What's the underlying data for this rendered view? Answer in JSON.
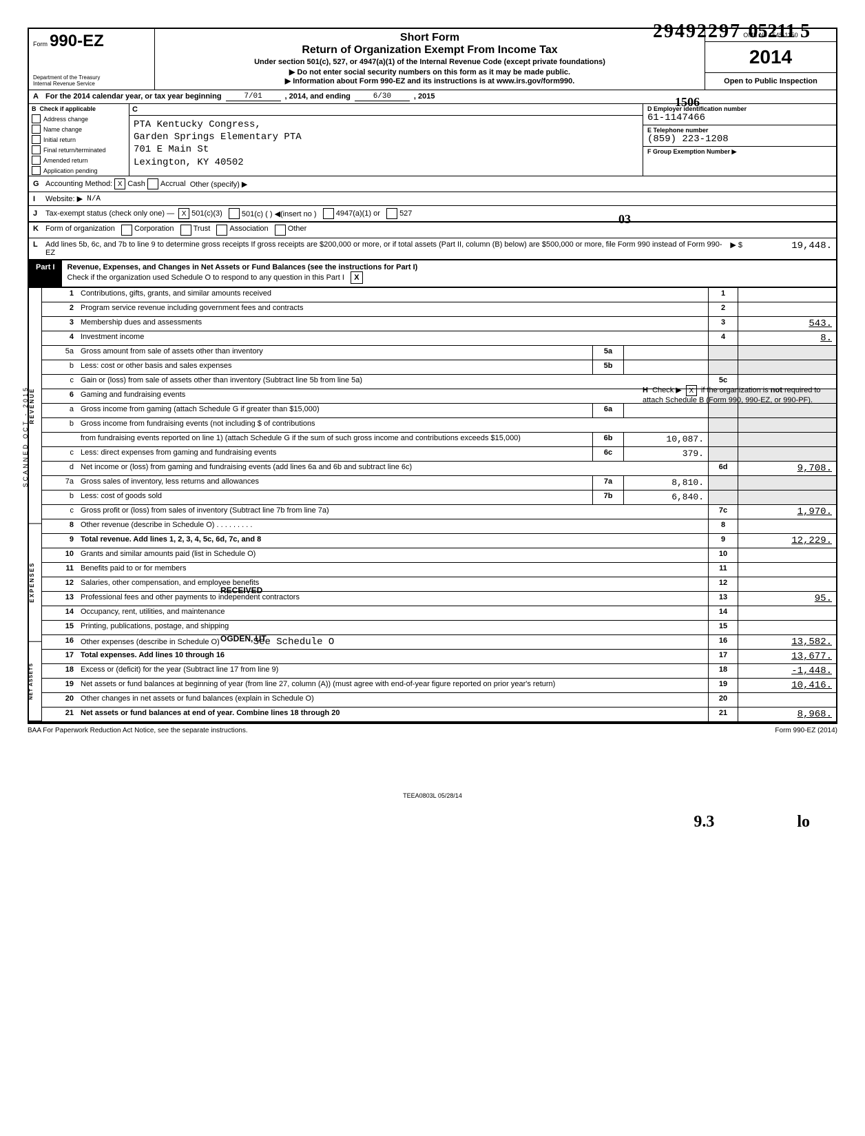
{
  "stamp_top": "29492297",
  "stamp_top2": "05211  5",
  "form_prefix": "Form",
  "form_name": "990-EZ",
  "short_form": "Short Form",
  "main_title": "Return of Organization Exempt From Income Tax",
  "subtitle": "Under section 501(c), 527, or 4947(a)(1) of the Internal Revenue Code (except private foundations)",
  "note1": "▶ Do not enter social security numbers on this form as it may be made public.",
  "note2": "▶ Information about Form 990-EZ and its instructions is at www.irs.gov/form990.",
  "omb": "OMB No 1545-1150",
  "year": "2014",
  "open_pub": "Open to Public Inspection",
  "dept": "Department of the Treasury\nInternal Revenue Service",
  "hw506": "1506",
  "line_a_pre": "For the 2014 calendar year, or tax year beginning",
  "line_a_begin": "7/01",
  "line_a_mid": ", 2014, and ending",
  "line_a_end": "6/30",
  "line_a_yr": ", 2015",
  "b_header": "Check if applicable",
  "b_opts": [
    "Address change",
    "Name change",
    "Initial return",
    "Final return/terminated",
    "Amended return",
    "Application pending"
  ],
  "c_header": "C",
  "c_name1": "PTA Kentucky Congress,",
  "c_name2": "Garden Springs Elementary PTA",
  "c_addr1": "701 E Main St",
  "c_addr2": "Lexington, KY 40502",
  "d_lbl": "D  Employer identification number",
  "d_val": "61-1147466",
  "e_lbl": "E  Telephone number",
  "e_val": "(859) 223-1208",
  "f_lbl": "F  Group Exemption Number  ▶",
  "hw03": "03",
  "g_label": "Accounting Method:",
  "g_cash": "Cash",
  "g_accrual": "Accrual",
  "g_other": "Other (specify) ▶",
  "i_label": "Website: ▶",
  "i_val": "N/A",
  "j_label": "Tax-exempt status (check only one) —",
  "j_opts": [
    "501(c)(3)",
    "501(c) (        ) ◀(insert no )",
    "4947(a)(1) or",
    "527"
  ],
  "h_text": "Check ▶      if the organization is not required to attach Schedule B (Form 990, 990-EZ, or 990-PF).",
  "h_x": "X",
  "k_label": "Form of organization",
  "k_opts": [
    "Corporation",
    "Trust",
    "Association",
    "Other"
  ],
  "l_text": "Add lines 5b, 6c, and 7b to line 9 to determine gross receipts  If gross receipts are $200,000 or more, or if total assets (Part II, column (B) below) are $500,000 or more, file Form 990 instead of Form 990-EZ",
  "l_arrow": "▶ $",
  "l_val": "19,448.",
  "part1_lbl": "Part I",
  "part1_title": "Revenue, Expenses, and Changes in Net Assets or Fund Balances (see the instructions for Part I)",
  "part1_sub": "Check if the organization used Schedule O to respond to any question in this Part I",
  "part1_x": "X",
  "side_rev": "REVENUE",
  "side_exp": "EXPENSES",
  "side_na": "NET ASSETS",
  "lines": {
    "1": {
      "d": "Contributions, gifts, grants, and similar amounts received",
      "r": "1",
      "v": ""
    },
    "2": {
      "d": "Program service revenue including government fees and contracts",
      "r": "2",
      "v": ""
    },
    "3": {
      "d": "Membership dues and assessments",
      "r": "3",
      "v": "543."
    },
    "4": {
      "d": "Investment income",
      "r": "4",
      "v": "8."
    },
    "5a": {
      "d": "Gross amount from sale of assets other than inventory",
      "m": "5a",
      "mv": ""
    },
    "5b": {
      "d": "Less: cost or other basis and sales expenses",
      "m": "5b",
      "mv": ""
    },
    "5c": {
      "d": "Gain or (loss) from sale of assets other than inventory (Subtract line 5b from line 5a)",
      "r": "5c",
      "v": ""
    },
    "6": {
      "d": "Gaming and fundraising events"
    },
    "6a": {
      "d": "Gross income from gaming (attach Schedule G if greater than $15,000)",
      "m": "6a",
      "mv": ""
    },
    "6bpre": "Gross income from fundraising events (not including $                        of contributions",
    "6b": {
      "d": "from fundraising events reported on line 1) (attach Schedule G if the sum of such gross income and contributions exceeds $15,000)",
      "m": "6b",
      "mv": "10,087."
    },
    "6c": {
      "d": "Less: direct expenses from gaming and fundraising events",
      "m": "6c",
      "mv": "379."
    },
    "6d": {
      "d": "Net income or (loss) from gaming and fundraising events (add lines 6a and 6b and subtract line 6c)",
      "r": "6d",
      "v": "9,708."
    },
    "7a": {
      "d": "Gross sales of inventory, less returns and allowances",
      "m": "7a",
      "mv": "8,810."
    },
    "7b": {
      "d": "Less: cost of goods sold",
      "m": "7b",
      "mv": "6,840."
    },
    "7c": {
      "d": "Gross profit or (loss) from sales of inventory (Subtract line 7b from line 7a)",
      "r": "7c",
      "v": "1,970."
    },
    "8": {
      "d": "Other revenue (describe in Schedule O) . .    . . .  . . . .",
      "r": "8",
      "v": ""
    },
    "9": {
      "d": "Total revenue. Add lines 1, 2, 3, 4, 5c, 6d, 7c, and 8",
      "r": "9",
      "v": "12,229.",
      "b": true
    },
    "10": {
      "d": "Grants and similar amounts paid (list in Schedule O)",
      "r": "10",
      "v": ""
    },
    "11": {
      "d": "Benefits paid to or for members",
      "r": "11",
      "v": ""
    },
    "12": {
      "d": "Salaries, other compensation, and employee benefits",
      "r": "12",
      "v": ""
    },
    "13": {
      "d": "Professional fees and other payments to independent contractors",
      "r": "13",
      "v": "95."
    },
    "14": {
      "d": "Occupancy, rent, utilities, and maintenance",
      "r": "14",
      "v": ""
    },
    "15": {
      "d": "Printing, publications, postage, and shipping",
      "r": "15",
      "v": ""
    },
    "16": {
      "d": "Other expenses (describe in Schedule O)",
      "r": "16",
      "v": "13,582.",
      "note": "See Schedule O"
    },
    "17": {
      "d": "Total expenses. Add lines 10 through 16",
      "r": "17",
      "v": "13,677.",
      "b": true
    },
    "18": {
      "d": "Excess or (deficit) for the year (Subtract line 17 from line 9)",
      "r": "18",
      "v": "-1,448."
    },
    "19": {
      "d": "Net assets or fund balances at beginning of year (from line 27, column (A)) (must agree with end-of-year figure reported on prior year's return)",
      "r": "19",
      "v": "10,416."
    },
    "20": {
      "d": "Other changes in net assets or fund balances (explain in Schedule O)",
      "r": "20",
      "v": ""
    },
    "21": {
      "d": "Net assets or fund balances at end of year. Combine lines 18 through 20",
      "r": "21",
      "v": "8,968.",
      "b": true
    }
  },
  "stamp1": "RECEIVED",
  "stamp2": "OGDEN, UT",
  "baa": "BAA  For Paperwork Reduction Act Notice, see the separate instructions.",
  "form_foot": "Form 990-EZ (2014)",
  "teea": "TEEA0803L  05/28/14",
  "hw_b1": "9.3",
  "hw_b2": "lo",
  "scanned_side": "SCANNED OCT - 2015"
}
